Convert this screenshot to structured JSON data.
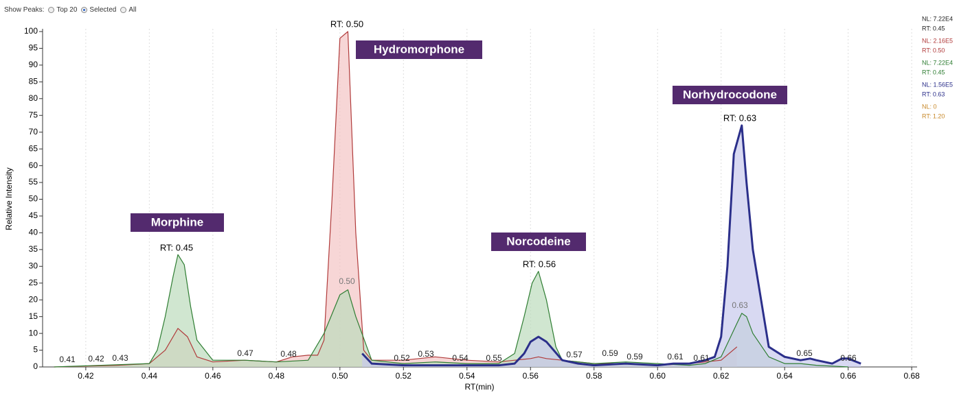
{
  "toolbar": {
    "label": "Show Peaks:",
    "options": [
      "Top 20",
      "Selected",
      "All"
    ],
    "selected": "Selected"
  },
  "chart_data": {
    "type": "line",
    "xlabel": "RT(min)",
    "ylabel": "Relative Intensity",
    "xlim": [
      0.4064,
      0.6817
    ],
    "ylim": [
      0,
      100
    ],
    "xticks": [
      0.42,
      0.44,
      0.46,
      0.48,
      {
        "value": 0.5,
        "label": "0.50"
      },
      0.52,
      0.54,
      0.56,
      0.58,
      {
        "value": 0.6,
        "label": "0.60"
      },
      0.62,
      0.64,
      0.66,
      0.68
    ],
    "yticks": [
      0,
      5,
      10,
      15,
      20,
      25,
      30,
      35,
      40,
      45,
      50,
      55,
      60,
      65,
      70,
      75,
      80,
      85,
      90,
      95,
      100
    ],
    "series": [
      {
        "color": "#b03a3a",
        "fill": "#f3c4c4",
        "width": 1.2,
        "x": [
          0.41,
          0.43,
          0.44,
          0.445,
          0.449,
          0.452,
          0.455,
          0.46,
          0.47,
          0.48,
          0.485,
          0.49,
          0.493,
          0.495,
          0.4975,
          0.5,
          0.5025,
          0.505,
          0.5075,
          0.51,
          0.52,
          0.53,
          0.54,
          0.55,
          0.555,
          0.56,
          0.5625,
          0.565,
          0.57,
          0.58,
          0.59,
          0.6,
          0.61,
          0.62,
          0.625
        ],
        "values": [
          0,
          0.5,
          1,
          5,
          11.5,
          9,
          3,
          1.5,
          2,
          1.5,
          3,
          3.5,
          3.5,
          8,
          50,
          98,
          100,
          40,
          5,
          2,
          2,
          3,
          2,
          1.5,
          2,
          2.5,
          3,
          2.5,
          2,
          1,
          1,
          0.5,
          1,
          2,
          6
        ]
      },
      {
        "color": "#2e7d32",
        "fill": "#bcdcbc",
        "width": 1.2,
        "x": [
          0.41,
          0.44,
          0.4425,
          0.445,
          0.4475,
          0.449,
          0.451,
          0.453,
          0.455,
          0.46,
          0.47,
          0.48,
          0.49,
          0.495,
          0.5,
          0.5025,
          0.505,
          0.51,
          0.52,
          0.53,
          0.54,
          0.55,
          0.555,
          0.558,
          0.5605,
          0.5625,
          0.565,
          0.568,
          0.57,
          0.58,
          0.59,
          0.6,
          0.61,
          0.615,
          0.62,
          0.6225,
          0.625,
          0.6265,
          0.628,
          0.63,
          0.635,
          0.64,
          0.645,
          0.65,
          0.66
        ],
        "values": [
          0,
          1,
          5,
          15,
          27,
          33.5,
          30.5,
          18,
          8,
          2,
          2,
          1.5,
          2,
          10,
          21.5,
          23,
          15,
          2,
          1,
          1.5,
          1,
          1,
          4,
          15,
          25,
          28.5,
          20,
          6,
          2,
          1,
          1.5,
          1,
          0.5,
          1,
          3,
          8,
          13,
          16,
          15,
          10,
          3,
          1,
          1,
          0.5,
          0
        ]
      },
      {
        "color": "#2b2f8a",
        "fill": "#c7c9ec",
        "width": 3,
        "x": [
          0.507,
          0.51,
          0.52,
          0.53,
          0.54,
          0.55,
          0.555,
          0.558,
          0.56,
          0.5625,
          0.565,
          0.57,
          0.575,
          0.58,
          0.59,
          0.6,
          0.605,
          0.61,
          0.615,
          0.618,
          0.62,
          0.622,
          0.624,
          0.6265,
          0.628,
          0.63,
          0.635,
          0.64,
          0.645,
          0.648,
          0.65,
          0.655,
          0.658,
          0.66,
          0.664
        ],
        "values": [
          4,
          1,
          0.5,
          0.5,
          0.5,
          0.5,
          1,
          4,
          7.5,
          9,
          7.5,
          2,
          1,
          0.5,
          1,
          0.5,
          1,
          1,
          2,
          3,
          9,
          30,
          63.5,
          72,
          55,
          35,
          6,
          3,
          2,
          2.5,
          2,
          1,
          2.5,
          2.5,
          1
        ]
      }
    ],
    "compounds": [
      "Morphine",
      "Hydromorphone",
      "Norcodeine",
      "Norhydrocodone"
    ],
    "peak_labels": [
      "RT: 0.45",
      "RT: 0.50",
      "RT: 0.56",
      "RT: 0.63"
    ],
    "minor_labels": [
      "0.41",
      "0.42",
      "0.43",
      "0.47",
      "0.48",
      "0.50",
      "0.52",
      "0.53",
      "0.54",
      "0.55",
      "0.57",
      "0.59",
      "0.59",
      "0.61",
      "0.61",
      "0.63",
      "0.65",
      "0.66"
    ],
    "traces": [
      {
        "nl": "NL: 7.22E4",
        "rt": "RT: 0.45",
        "color": "#222222"
      },
      {
        "nl": "NL: 2.16E5",
        "rt": "RT: 0.50",
        "color": "#b03a3a"
      },
      {
        "nl": "NL: 7.22E4",
        "rt": "RT: 0.45",
        "color": "#2e7d32"
      },
      {
        "nl": "NL: 1.56E5",
        "rt": "RT: 0.63",
        "color": "#2b2f8a"
      },
      {
        "nl": "NL: 0",
        "rt": "RT: 1.20",
        "color": "#c8892a"
      }
    ]
  }
}
